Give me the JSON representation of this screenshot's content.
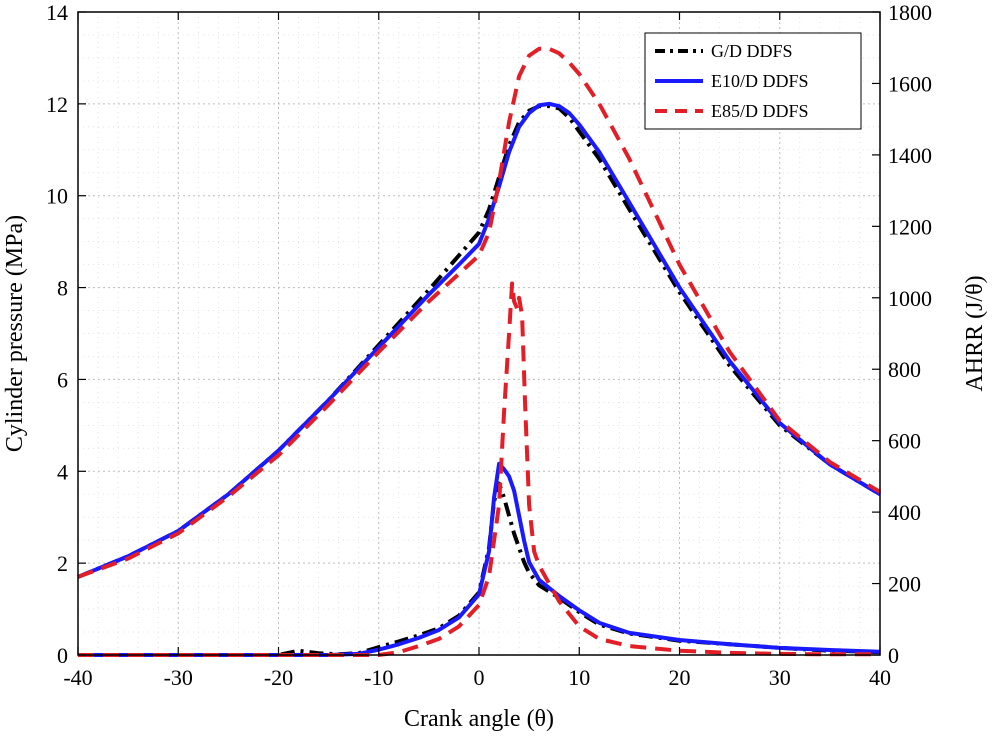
{
  "chart_data": {
    "type": "line",
    "xlabel": "Crank angle (θ)",
    "ylabel_left": "Cylinder pressure (MPa)",
    "ylabel_right": "AHRR (J/θ)",
    "xlim": [
      -40,
      40
    ],
    "ylim_left": [
      0,
      14
    ],
    "ylim_right": [
      0,
      1800
    ],
    "x_ticks": [
      -40,
      -30,
      -20,
      -10,
      0,
      10,
      20,
      30,
      40
    ],
    "y_left_ticks": [
      0,
      2,
      4,
      6,
      8,
      10,
      12,
      14
    ],
    "y_right_ticks": [
      0,
      200,
      400,
      600,
      800,
      1000,
      1200,
      1400,
      1600,
      1800
    ],
    "grid": true,
    "legend_position": "top-right",
    "series": [
      {
        "name": "G/D DDFS",
        "color": "#000000",
        "style": "dashdot",
        "pressure": {
          "x": [
            -40,
            -35,
            -30,
            -25,
            -20,
            -15,
            -10,
            -5,
            -2,
            0,
            1,
            2,
            3,
            4,
            5,
            6,
            7,
            8,
            9,
            10,
            12,
            15,
            20,
            25,
            30,
            35,
            40
          ],
          "y": [
            1.7,
            2.15,
            2.7,
            3.5,
            4.45,
            5.55,
            6.75,
            7.95,
            8.7,
            9.2,
            9.7,
            10.4,
            11.1,
            11.6,
            11.85,
            11.95,
            11.95,
            11.9,
            11.7,
            11.4,
            10.8,
            9.7,
            7.9,
            6.3,
            5.0,
            4.15,
            3.5
          ]
        },
        "ahrr": {
          "x": [
            -40,
            -20,
            -18,
            -16,
            -14,
            -12,
            -10,
            -8,
            -6,
            -4,
            -2,
            0,
            1,
            1.5,
            2,
            2.5,
            3,
            3.5,
            4,
            4.5,
            5,
            6,
            8,
            10,
            12,
            15,
            20,
            25,
            30,
            35,
            40
          ],
          "y": [
            0,
            0,
            12,
            5,
            2,
            5,
            22,
            38,
            55,
            75,
            110,
            175,
            300,
            430,
            480,
            440,
            390,
            340,
            300,
            260,
            230,
            195,
            160,
            120,
            85,
            60,
            40,
            30,
            20,
            12,
            8
          ]
        }
      },
      {
        "name": "E10/D DDFS",
        "color": "#1a1aff",
        "style": "solid",
        "pressure": {
          "x": [
            -40,
            -35,
            -30,
            -25,
            -20,
            -15,
            -10,
            -5,
            -2,
            0,
            1,
            2,
            3,
            4,
            5,
            6,
            7,
            8,
            9,
            10,
            12,
            15,
            20,
            25,
            30,
            35,
            40
          ],
          "y": [
            1.7,
            2.15,
            2.7,
            3.5,
            4.45,
            5.55,
            6.7,
            7.85,
            8.5,
            8.95,
            9.5,
            10.2,
            10.95,
            11.5,
            11.8,
            11.97,
            12.0,
            11.95,
            11.8,
            11.55,
            10.95,
            9.85,
            8.0,
            6.4,
            5.05,
            4.15,
            3.5
          ]
        },
        "ahrr": {
          "x": [
            -40,
            -15,
            -12,
            -10,
            -8,
            -6,
            -4,
            -2,
            0,
            1,
            1.5,
            2,
            2.5,
            3,
            3.5,
            4,
            4.5,
            5,
            6,
            8,
            10,
            12,
            15,
            20,
            25,
            30,
            35,
            40
          ],
          "y": [
            0,
            0,
            3,
            15,
            30,
            48,
            70,
            105,
            170,
            290,
            440,
            535,
            520,
            500,
            460,
            390,
            320,
            260,
            210,
            165,
            125,
            90,
            62,
            42,
            30,
            20,
            14,
            9
          ]
        }
      },
      {
        "name": "E85/D DDFS",
        "color": "#e41e26",
        "style": "dashed",
        "pressure": {
          "x": [
            -40,
            -35,
            -30,
            -25,
            -20,
            -15,
            -10,
            -5,
            -2,
            0,
            1,
            2,
            3,
            4,
            5,
            6,
            7,
            8,
            9,
            10,
            12,
            15,
            20,
            25,
            30,
            35,
            40
          ],
          "y": [
            1.7,
            2.1,
            2.65,
            3.45,
            4.35,
            5.45,
            6.6,
            7.7,
            8.3,
            8.7,
            9.2,
            10.3,
            11.6,
            12.6,
            13.05,
            13.2,
            13.2,
            13.1,
            12.9,
            12.65,
            12.0,
            10.8,
            8.5,
            6.6,
            5.1,
            4.2,
            3.55
          ]
        },
        "ahrr": {
          "x": [
            -40,
            -10,
            -8,
            -6,
            -4,
            -2,
            0,
            1,
            2,
            2.5,
            3,
            3.3,
            3.5,
            3.8,
            4,
            4.3,
            4.6,
            5,
            5.5,
            6,
            7,
            8,
            10,
            12,
            15,
            20,
            25,
            30,
            35,
            40
          ],
          "y": [
            0,
            0,
            8,
            25,
            45,
            80,
            140,
            220,
            420,
            680,
            900,
            1040,
            990,
            970,
            1000,
            950,
            700,
            420,
            290,
            250,
            200,
            150,
            80,
            45,
            25,
            12,
            6,
            3,
            2,
            2
          ]
        }
      }
    ]
  }
}
